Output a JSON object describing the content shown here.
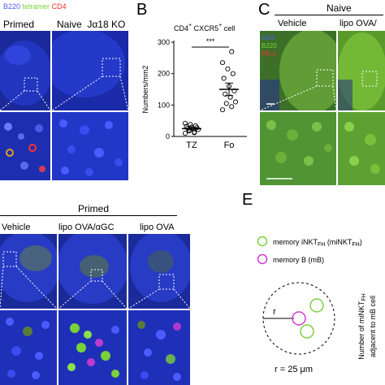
{
  "panel_letters": {
    "b": "B",
    "c": "C",
    "e": "E"
  },
  "panel_a": {
    "channels": {
      "b220": "B220",
      "tetramer": "tetramer",
      "cd4": "CD4"
    },
    "col_primed": "Primed",
    "col_naive": "Naive",
    "col_ko": "Jα18 KO"
  },
  "panel_b": {
    "title_main": "CD4",
    "title_sup": "+",
    "title_cxcr5": " CXCR5",
    "title_sup2": "+",
    "title_cell": " cell",
    "significance": "***"
  },
  "chart_data": {
    "type": "scatter",
    "categories": [
      "TZ",
      "Fo"
    ],
    "ylabel": "Numbers/mm2",
    "ylim": [
      0,
      300
    ],
    "yticks": [
      0,
      100,
      200,
      300
    ],
    "series": [
      {
        "values_tz": [
          10,
          14,
          18,
          22,
          24,
          26,
          28,
          30,
          32,
          34,
          38,
          42,
          12,
          20
        ]
      },
      {
        "values_fo": [
          85,
          95,
          105,
          110,
          125,
          135,
          145,
          160,
          185,
          200,
          215,
          235,
          270
        ]
      }
    ],
    "means": [
      25,
      150
    ],
    "sem": [
      4,
      20
    ]
  },
  "panel_c": {
    "header": "Naive",
    "col_vehicle": "Vehicle",
    "col_lipo": "lipo OVA/",
    "channels": {
      "cd4": "CD4",
      "b220": "B220",
      "pd1": "PD-1"
    }
  },
  "panel_d": {
    "header": "Primed",
    "col_vehicle": "Vehicle",
    "col_lipo_agc": "lipo OVA/αGC",
    "col_lipo": "lipo OVA"
  },
  "panel_e": {
    "legend_nkt": "memory iNKT",
    "legend_nkt_sub": "FH",
    "legend_nkt_paren": " (miNKT",
    "legend_nkt_paren_sub": "FH",
    "legend_nkt_close": ")",
    "legend_b": "memory B (mB)",
    "radius_label": "r",
    "radius_value": "r = 25 μm",
    "axis_line1": "Number of miNKT",
    "axis_line1_sub": "FH",
    "axis_line2": "adjacent to mB cell",
    "color_nkt": "#7ad13a",
    "color_b": "#d23bd2"
  }
}
